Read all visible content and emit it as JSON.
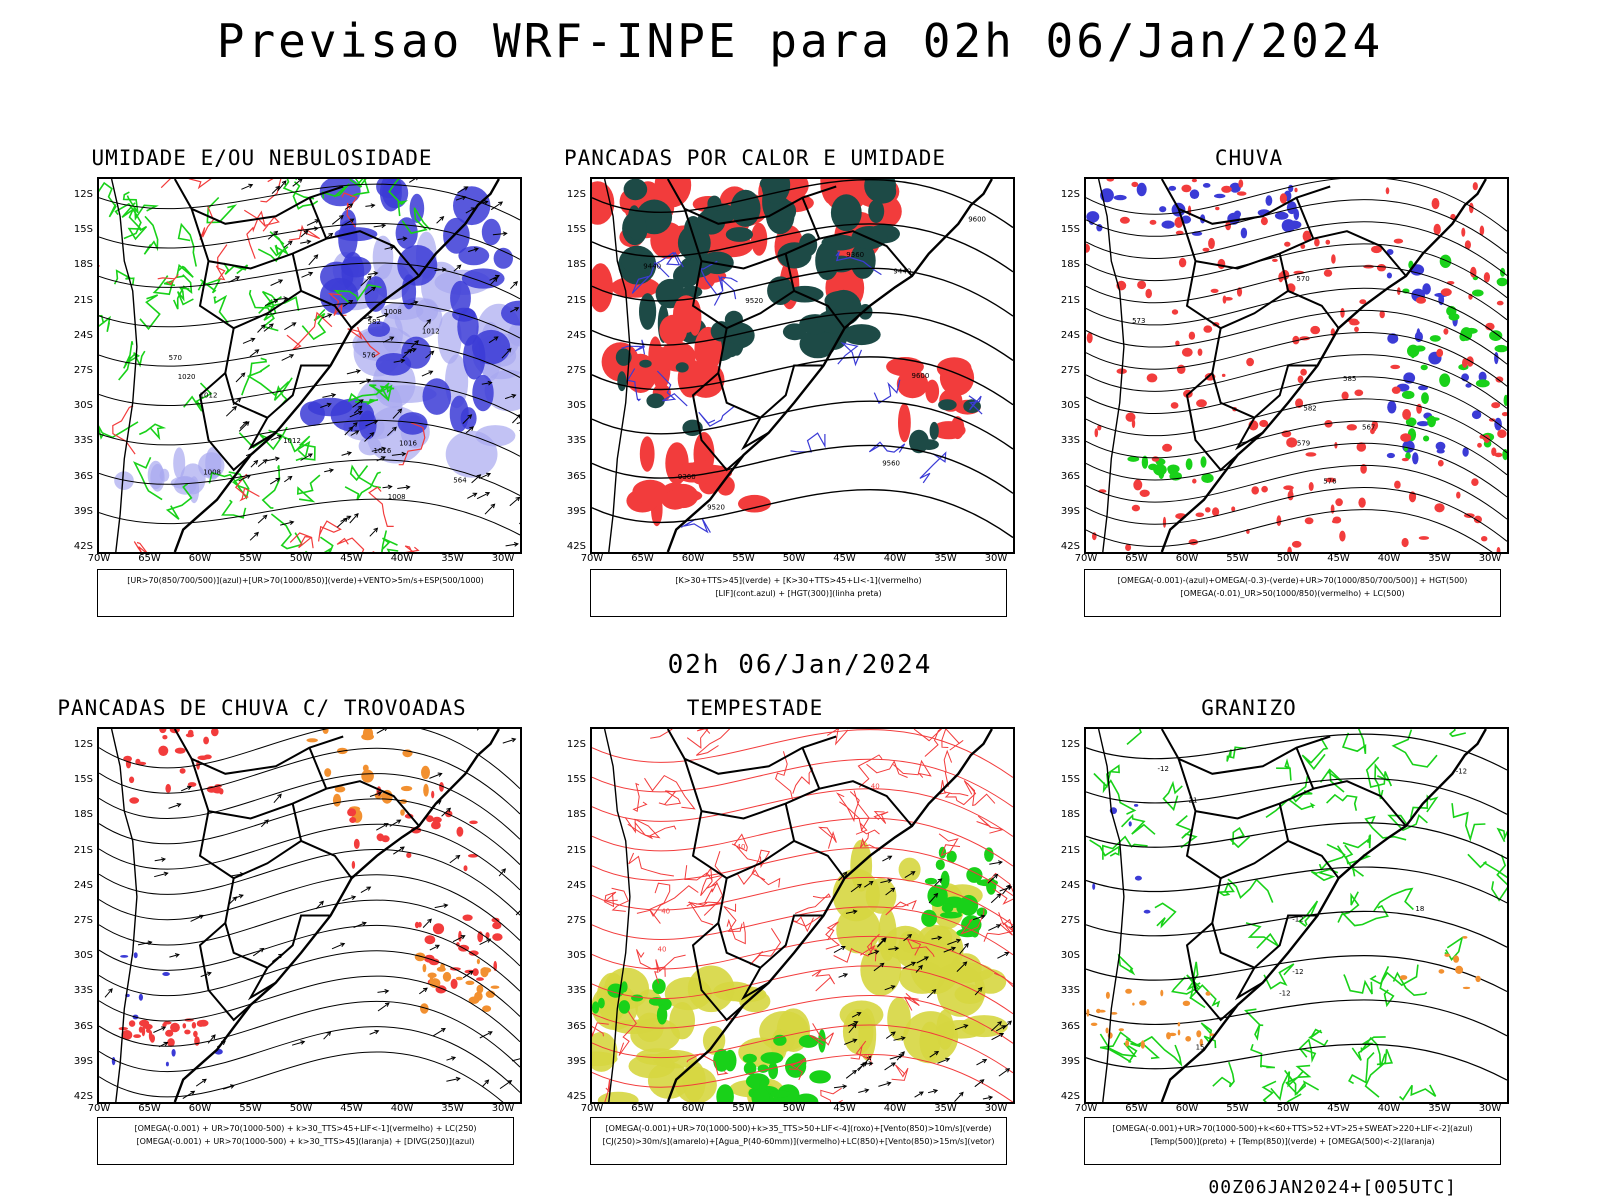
{
  "title": "Previsao WRF-INPE  para 02h 06/Jan/2024",
  "subtitle": "02h 06/Jan/2024",
  "footer": "00Z06JAN2024+[005UTC]",
  "lat_labels": [
    "12S",
    "15S",
    "18S",
    "21S",
    "24S",
    "27S",
    "30S",
    "33S",
    "36S",
    "39S",
    "42S"
  ],
  "lon_labels": [
    "70W",
    "65W",
    "60W",
    "55W",
    "50W",
    "45W",
    "40W",
    "35W",
    "30W"
  ],
  "colors": {
    "blue": "#3b3bd6",
    "lightblue": "#a8a8f0",
    "green": "#19d119",
    "red": "#f23c3c",
    "darkgreen": "#1d4a46",
    "yellow": "#d6d640",
    "orange": "#f29030"
  },
  "panels": [
    {
      "id": "umidade",
      "title": "UMIDADE E/OU NEBULOSIDADE",
      "legend": [
        "[UR>70(850/700/500)](azul)+[UR>70(1000/850)](verde)+VENTO>5m/s+ESP(500/1000)"
      ],
      "contour_labels": [
        "1012",
        "1008",
        "1012",
        "1008",
        "1016",
        "1020",
        "1008",
        "1012",
        "1016",
        "576",
        "570",
        "564",
        "582"
      ]
    },
    {
      "id": "pancadas-calor",
      "title": "PANCADAS POR CALOR E UMIDADE",
      "legend": [
        "[K>30+TTS>45](verde) + [K>30+TTS>45+LI<-1](vermelho)",
        "[LIF](cont.azul) + [HGT(300)](linha preta)"
      ],
      "contour_labels": [
        "9600",
        "9520",
        "9600",
        "9440",
        "9360",
        "9520",
        "9440",
        "9360",
        "9560"
      ]
    },
    {
      "id": "chuva",
      "title": "CHUVA",
      "legend": [
        "[OMEGA(-0.001)-(azul)+OMEGA(-0.3)-(verde)+UR>70(1000/850/700/500)] + HGT(500)",
        "[OMEGA(-0.01)_UR>50(1000/850)(vermelho) + LC(500)"
      ],
      "contour_labels": [
        "585",
        "582",
        "579",
        "576",
        "573",
        "570",
        "567"
      ]
    },
    {
      "id": "trovoadas",
      "title": "PANCADAS DE CHUVA C/ TROVOADAS",
      "legend": [
        "[OMEGA(-0.001) + UR>70(1000-500) + k>30_TTS>45+LIF<-1](vermelho) + LC(250)",
        "[OMEGA(-0.001) + UR>70(1000-500) + k>30_TTS>45](laranja) + [DIVG(250)](azul)"
      ],
      "contour_labels": []
    },
    {
      "id": "tempestade",
      "title": "TEMPESTADE",
      "legend": [
        "[OMEGA(-0.001)+UR>70(1000-500)+k>35_TTS>50+LIF<-4](roxo)+[Vento(850)>10m/s](verde)",
        "[CJ(250)>30m/s](amarelo)+[Agua_P(40-60mm)](vermelho)+LC(850)+[Vento(850)>15m/s](vetor)"
      ],
      "contour_labels": [
        "40",
        "40",
        "40",
        "40",
        "40"
      ]
    },
    {
      "id": "granizo",
      "title": "GRANIZO",
      "legend": [
        "[OMEGA(-0.001)+UR>70(1000-500)+k<60+TTS>52+VT>25+SWEAT>220+LIF<-2](azul)",
        "[Temp(500)](preto) + [Temp(850)](verde) + [OMEGA(500)<-2](laranja)"
      ],
      "contour_labels": [
        "-12",
        "-12",
        "-12",
        "-12",
        "-12",
        "21",
        "18",
        "15"
      ]
    }
  ]
}
